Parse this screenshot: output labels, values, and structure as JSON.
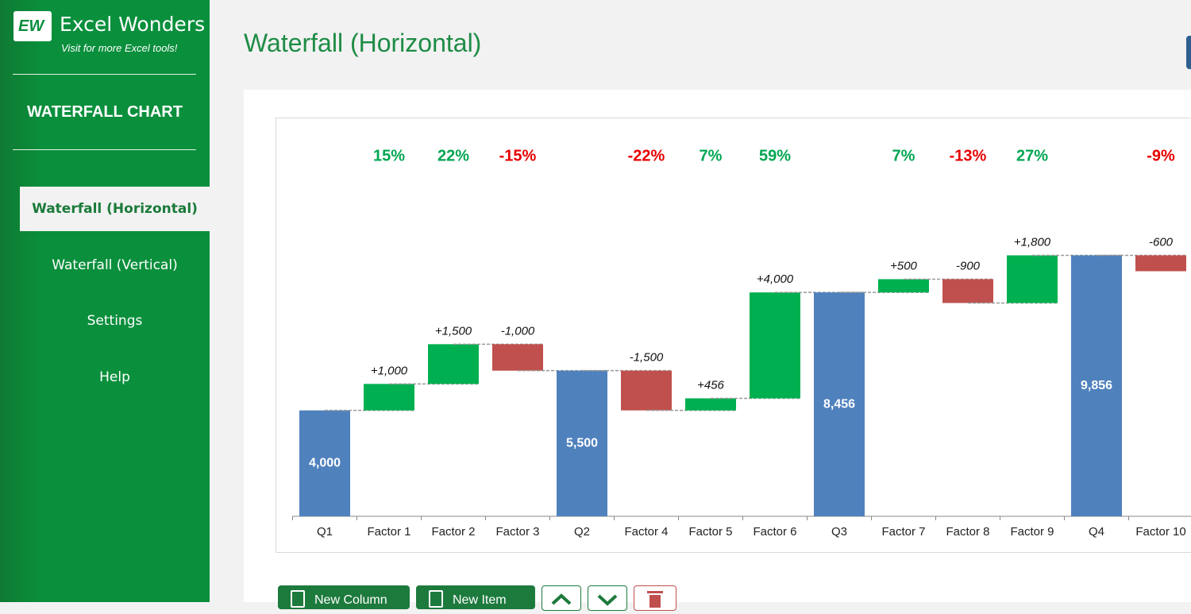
{
  "sidebar": {
    "logo_mark": "EW",
    "brand": "Excel Wonders",
    "tagline": "Visit for more Excel tools!",
    "section_title": "WATERFALL CHART",
    "nav": [
      "Waterfall (Horizontal)",
      "Waterfall (Vertical)",
      "Settings",
      "Help"
    ]
  },
  "header": {
    "title": "Waterfall (Horizontal)"
  },
  "chart_data": {
    "type": "waterfall",
    "categories": [
      "Q1",
      "Factor 1",
      "Factor 2",
      "Factor 3",
      "Q2",
      "Factor 4",
      "Factor 5",
      "Factor 6",
      "Q3",
      "Factor 7",
      "Factor 8",
      "Factor 9",
      "Q4",
      "Factor 10"
    ],
    "measure": [
      "total",
      "relative",
      "relative",
      "relative",
      "total",
      "relative",
      "relative",
      "relative",
      "total",
      "relative",
      "relative",
      "relative",
      "total",
      "relative"
    ],
    "values": [
      4000,
      1000,
      1500,
      -1000,
      5500,
      -1500,
      456,
      4000,
      8456,
      500,
      -900,
      1800,
      9856,
      -600
    ],
    "value_labels": [
      "4,000",
      "+1,000",
      "+1,500",
      "-1,000",
      "5,500",
      "-1,500",
      "+456",
      "+4,000",
      "8,456",
      "+500",
      "-900",
      "+1,800",
      "9,856",
      "-600"
    ],
    "percent_values": [
      null,
      15,
      22,
      -15,
      null,
      -22,
      7,
      59,
      null,
      7,
      -13,
      27,
      null,
      -9
    ],
    "percent_labels": [
      null,
      "15%",
      "22%",
      "-15%",
      null,
      "-22%",
      "7%",
      "59%",
      null,
      "7%",
      "-13%",
      "27%",
      null,
      "-9%"
    ],
    "total_color": "#4f81bd",
    "increase_color": "#00b050",
    "decrease_color": "#c0504d",
    "positive_text_color": "#00a651",
    "negative_text_color": "#e60000",
    "ylim": [
      0,
      15000
    ]
  },
  "buttons": [
    "New Column",
    "New Item"
  ]
}
